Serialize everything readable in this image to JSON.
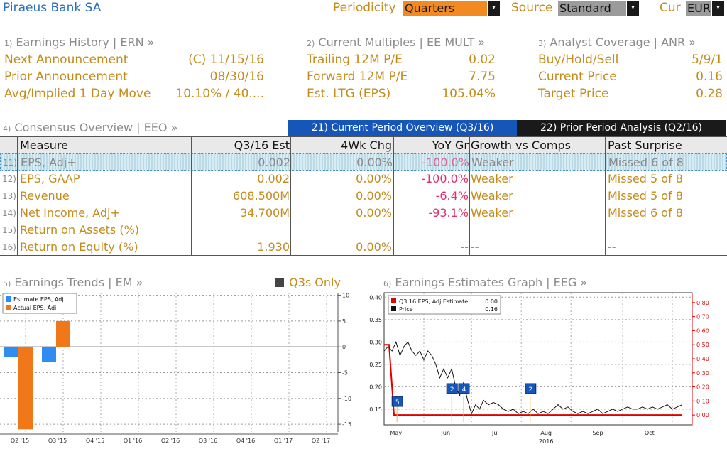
{
  "header": {
    "title": "Piraeus Bank SA",
    "periodicity_label": "Periodicity",
    "periodicity_value": "Quarters",
    "source_label": "Source",
    "source_value": "Standard",
    "cur_label": "Cur",
    "cur_value": "EUR",
    "dropdown_glyph": "▾"
  },
  "panels": {
    "ern": {
      "num": "1)",
      "title": "Earnings History | ERN »",
      "rows": [
        {
          "label": "Next Announcement",
          "value": "(C)  11/15/16"
        },
        {
          "label": "Prior Announcement",
          "value": "08/30/16"
        },
        {
          "label": "Avg/Implied 1 Day Move",
          "value": "10.10% / 40...."
        }
      ]
    },
    "eemult": {
      "num": "2)",
      "title": "Current Multiples | EE MULT »",
      "rows": [
        {
          "label": "Trailing 12M P/E",
          "value": "0.02"
        },
        {
          "label": "Forward 12M P/E",
          "value": "7.75"
        },
        {
          "label": "Est. LTG (EPS)",
          "value": "105.04%"
        }
      ]
    },
    "anr": {
      "num": "3)",
      "title": "Analyst Coverage | ANR »",
      "rows": [
        {
          "label": "Buy/Hold/Sell",
          "value": "5/9/1"
        },
        {
          "label": "Current Price",
          "value": "0.16"
        },
        {
          "label": "Target Price",
          "value": "0.28"
        }
      ]
    }
  },
  "consensus": {
    "num": "4)",
    "title": "Consensus Overview | EEO »",
    "tab_current": "21) Current Period Overview (Q3/16)",
    "tab_prior": "22) Prior Period Analysis (Q2/16)",
    "columns": [
      "Measure",
      "Q3/16 Est",
      "4Wk Chg",
      "YoY Gr",
      "Growth vs Comps",
      "Past Surprise"
    ],
    "rows": [
      {
        "num": "11)",
        "measure": "EPS, Adj+",
        "est": "0.002",
        "chg": "0.00%",
        "yoy": "-100.0%",
        "growth": "Weaker",
        "surprise": "Missed 6 of 8"
      },
      {
        "num": "12)",
        "measure": "EPS, GAAP",
        "est": "0.002",
        "chg": "0.00%",
        "yoy": "-100.0%",
        "growth": "Weaker",
        "surprise": "Missed 5 of 8"
      },
      {
        "num": "13)",
        "measure": "Revenue",
        "est": "608.500M",
        "chg": "0.00%",
        "yoy": "-6.4%",
        "growth": "Weaker",
        "surprise": "Missed 5 of 8"
      },
      {
        "num": "14)",
        "measure": "Net Income, Adj+",
        "est": "34.700M",
        "chg": "0.00%",
        "yoy": "-93.1%",
        "growth": "Weaker",
        "surprise": "Missed 6 of 8"
      },
      {
        "num": "15)",
        "measure": "Return on Assets (%)",
        "est": "",
        "chg": "",
        "yoy": "",
        "growth": "",
        "surprise": ""
      },
      {
        "num": "16)",
        "measure": "Return on Equity (%)",
        "est": "1.930",
        "chg": "0.00%",
        "yoy": "--",
        "growth": "--",
        "surprise": "--"
      }
    ]
  },
  "trends": {
    "num": "5)",
    "title": "Earnings Trends | EM »",
    "toggle_label": "Q3s Only"
  },
  "eeg": {
    "num": "6)",
    "title": "Earnings Estimates Graph | EEG »"
  },
  "chart_data": [
    {
      "type": "bar",
      "categories": [
        "Q2 '15",
        "Q3 '15",
        "Q4 '15",
        "Q1 '16",
        "Q2 '16",
        "Q3 '16",
        "Q4 '16",
        "Q1 '17",
        "Q2 '17"
      ],
      "series": [
        {
          "name": "Estimate EPS, Adj",
          "color": "#2f8cf0",
          "values": [
            -2,
            -3,
            null,
            null,
            null,
            null,
            null,
            null,
            null
          ]
        },
        {
          "name": "Actual EPS, Adj",
          "color": "#f07818",
          "values": [
            -16,
            5,
            null,
            null,
            null,
            null,
            null,
            null,
            null
          ]
        }
      ],
      "ylim": [
        -16.5,
        10.5
      ],
      "yticks": [
        10,
        5,
        0,
        -5,
        -10,
        -15
      ],
      "ytick_labels": [
        "10",
        "5",
        "0",
        "-5",
        "-10",
        "-15"
      ],
      "grid": true,
      "legend": "top-left"
    },
    {
      "type": "line",
      "x_labels": [
        "May",
        "Jun",
        "Jul",
        "Aug",
        "Sep",
        "Oct"
      ],
      "x_year": "2016",
      "left_axis": {
        "ylim": [
          0.115,
          0.41
        ],
        "ticks": [
          "0.40",
          "0.35",
          "0.30",
          "0.25",
          "0.20",
          "0.15"
        ],
        "tick_values": [
          0.4,
          0.35,
          0.3,
          0.25,
          0.2,
          0.15
        ]
      },
      "right_axis": {
        "ylim": [
          -0.07,
          0.87
        ],
        "ticks": [
          "0.80",
          "0.70",
          "0.60",
          "0.50",
          "0.40",
          "0.30",
          "0.20",
          "0.10",
          "0.00"
        ],
        "tick_values": [
          0.8,
          0.7,
          0.6,
          0.5,
          0.4,
          0.3,
          0.2,
          0.1,
          0.0
        ],
        "color": "#e00000"
      },
      "series": [
        {
          "name": "Q3 16 EPS, Adj Estimate",
          "legend_value": "0.00",
          "color": "#e00000",
          "axis": "right",
          "x": [
            0,
            0.5,
            1,
            3,
            6,
            9,
            12,
            15,
            18,
            21,
            24,
            27,
            30
          ],
          "y": [
            0.5,
            0.5,
            0.0,
            0.0,
            0.0,
            0.0,
            0.0,
            0.0,
            0.0,
            0.0,
            0.0,
            0.0,
            0.0
          ]
        },
        {
          "name": "Price",
          "legend_value": "0.16",
          "color": "#111111",
          "axis": "left",
          "x": [
            0,
            0.4,
            0.8,
            1.2,
            1.6,
            2.0,
            2.4,
            2.8,
            3.2,
            3.6,
            4.0,
            4.4,
            4.8,
            5.2,
            5.6,
            6.0,
            6.4,
            6.8,
            7.2,
            7.6,
            8.0,
            8.4,
            8.8,
            9.2,
            9.6,
            10.0,
            10.5,
            11,
            11.5,
            12,
            12.5,
            13,
            13.5,
            14,
            14.5,
            15,
            15.5,
            16,
            16.5,
            17,
            17.5,
            18,
            18.5,
            19,
            19.5,
            20,
            20.5,
            21,
            21.5,
            22,
            22.5,
            23,
            23.5,
            24,
            24.5,
            25,
            25.5,
            26,
            26.5,
            27,
            27.5,
            28,
            28.5,
            29,
            29.5,
            30
          ],
          "y": [
            0.28,
            0.29,
            0.28,
            0.3,
            0.27,
            0.29,
            0.3,
            0.28,
            0.27,
            0.28,
            0.26,
            0.28,
            0.27,
            0.25,
            0.22,
            0.24,
            0.22,
            0.24,
            0.2,
            0.18,
            0.21,
            0.17,
            0.14,
            0.16,
            0.15,
            0.17,
            0.16,
            0.165,
            0.16,
            0.15,
            0.145,
            0.15,
            0.14,
            0.145,
            0.14,
            0.15,
            0.14,
            0.145,
            0.14,
            0.15,
            0.16,
            0.15,
            0.155,
            0.145,
            0.14,
            0.145,
            0.14,
            0.145,
            0.15,
            0.14,
            0.145,
            0.15,
            0.145,
            0.15,
            0.155,
            0.15,
            0.15,
            0.155,
            0.15,
            0.155,
            0.15,
            0.155,
            0.16,
            0.15,
            0.155,
            0.16
          ]
        }
      ],
      "event_markers": [
        {
          "label": "5",
          "x": 0.8
        },
        {
          "label": "2",
          "x": 6.3
        },
        {
          "label": "4",
          "x": 7.5
        },
        {
          "label": "2",
          "x": 14.2
        }
      ],
      "grid": true,
      "legend": "top-left"
    }
  ]
}
